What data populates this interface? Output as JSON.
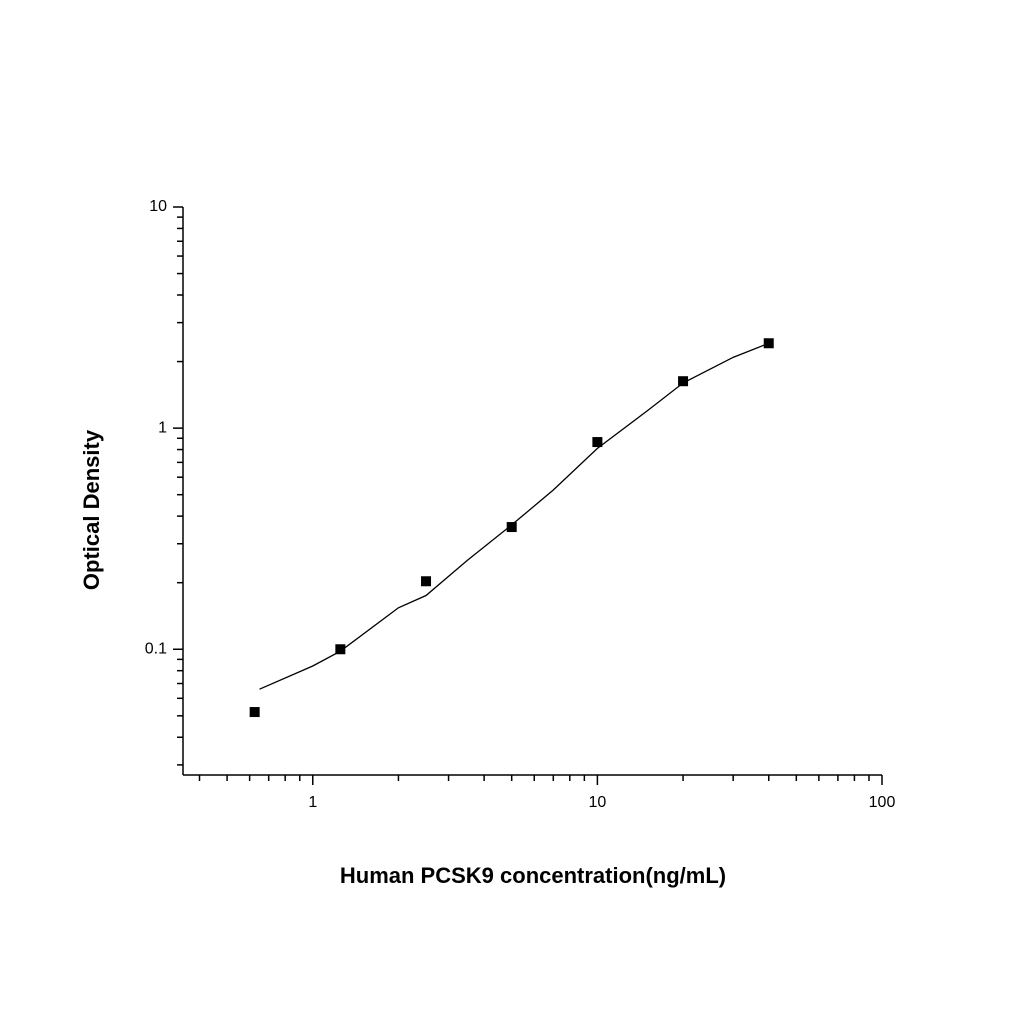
{
  "chart_data": {
    "type": "scatter",
    "x_label": "Human PCSK9 concentration(ng/mL)",
    "y_label": "Optical Density",
    "x": [
      0.625,
      1.25,
      2.5,
      5,
      10,
      20,
      40
    ],
    "values": [
      0.052,
      0.1,
      0.203,
      0.357,
      0.865,
      1.63,
      2.42
    ],
    "color": "#000000",
    "curve": {
      "x": [
        0.65,
        1,
        1.25,
        2,
        2.5,
        3.5,
        5,
        7,
        10,
        15,
        20,
        30,
        40
      ],
      "values": [
        0.066,
        0.084,
        0.098,
        0.154,
        0.175,
        0.253,
        0.365,
        0.525,
        0.81,
        1.2,
        1.6,
        2.09,
        2.42
      ]
    },
    "xlim": [
      0.35,
      100
    ],
    "ylim": [
      0.027,
      10
    ],
    "xticks": [
      1,
      10,
      100
    ],
    "yticks": [
      0.1,
      1,
      10
    ],
    "xscale": "log",
    "yscale": "log",
    "minor_ticks": true,
    "grid": false
  }
}
